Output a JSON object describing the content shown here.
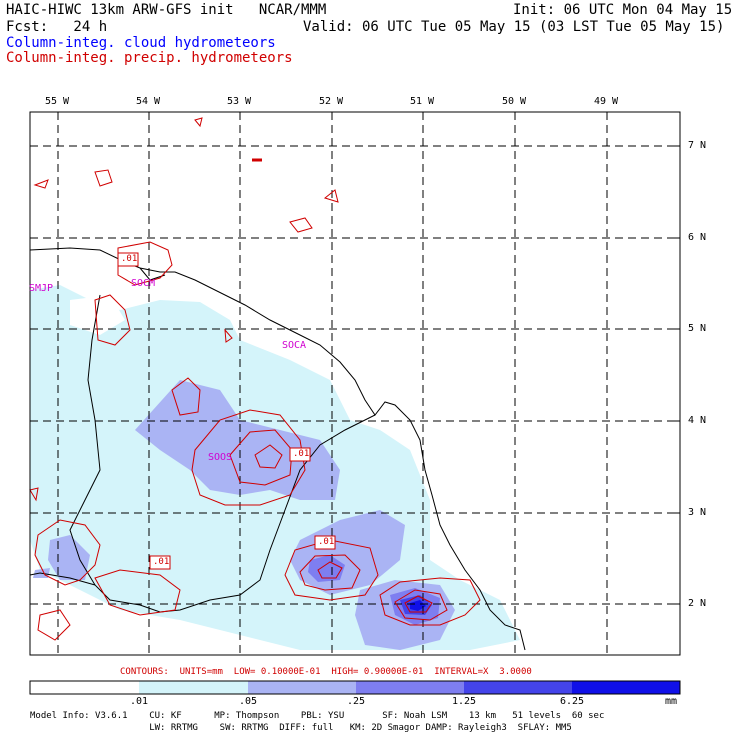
{
  "header": {
    "title": "HAIC-HIWC 13km ARW-GFS init   NCAR/MMM",
    "init": "Init: 06 UTC Mon 04 May 15",
    "fcst_label": "Fcst:   24 h",
    "valid": "Valid: 06 UTC Tue 05 May 15 (03 LST Tue 05 May 15)",
    "field1": "Column-integ. cloud hydrometeors",
    "field2": "Column-integ. precip. hydrometeors"
  },
  "lon_labels": [
    "55 W",
    "54 W",
    "53 W",
    "52 W",
    "51 W",
    "50 W",
    "49 W"
  ],
  "lat_labels": [
    "7 N",
    "6 N",
    "5 N",
    "4 N",
    "3 N",
    "2 N"
  ],
  "stations": [
    "SMJP",
    "SOCM",
    "SOCA",
    "SOOS"
  ],
  "contour_labels": [
    ".01",
    ".01",
    ".01",
    ".01"
  ],
  "contours_line": "CONTOURS:  UNITS=mm  LOW= 0.10000E-01  HIGH= 0.90000E-01  INTERVAL=X  3.0000",
  "colorbar": {
    "ticks": [
      ".01",
      ".05",
      ".25",
      "1.25",
      "6.25"
    ],
    "unit": "mm",
    "colors": [
      "#ffffff",
      "#d4f4fa",
      "#aab4f4",
      "#7e7ef0",
      "#4444ea",
      "#1010e8"
    ]
  },
  "model_info": {
    "line1": "Model Info: V3.6.1    CU: KF      MP: Thompson    PBL: YSU       SF: Noah LSM    13 km   51 levels  60 sec",
    "line2": "                      LW: RRTMG    SW: RRTMG  DIFF: full   KM: 2D Smagor DAMP: Rayleigh3  SFLAY: MM5"
  },
  "colors": {
    "cloud_text": "#0000ff",
    "precip_text": "#d00000",
    "station_text": "#d000d0"
  }
}
